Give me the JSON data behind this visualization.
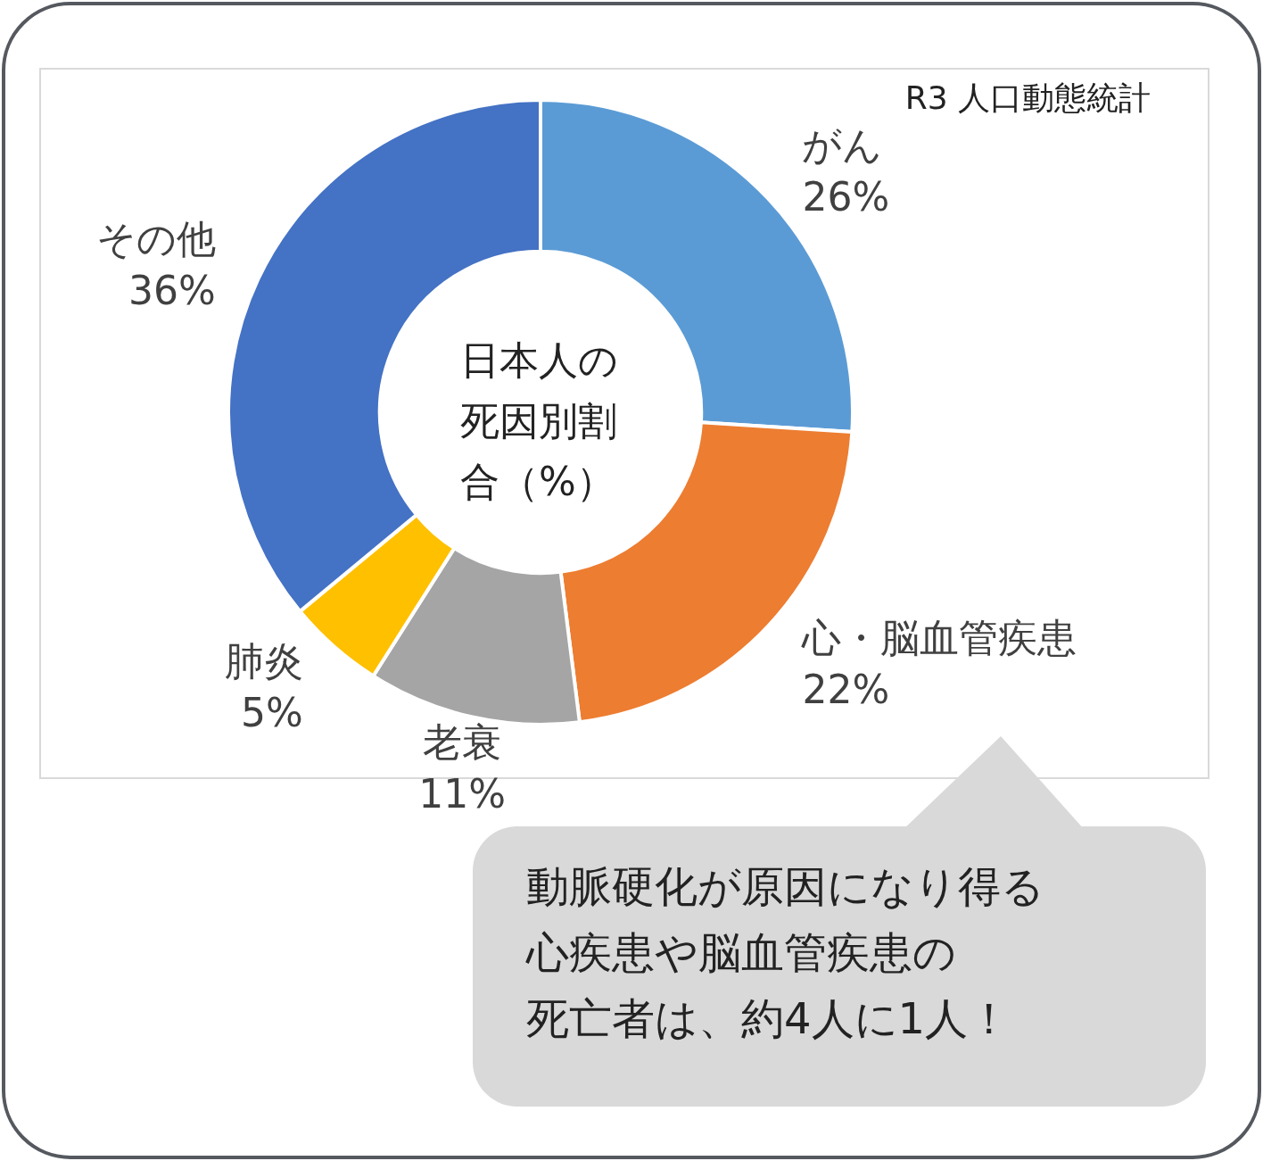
{
  "chart_data": {
    "type": "donut",
    "title": "日本人の死因別割合（%）",
    "categories": [
      "がん",
      "心・脳血管疾患",
      "老衰",
      "肺炎",
      "その他"
    ],
    "values": [
      26,
      22,
      11,
      5,
      36
    ],
    "colors": [
      "#5b9bd5",
      "#ed7d31",
      "#a5a5a5",
      "#ffc000",
      "#4472c4"
    ],
    "value_labels": [
      "26%",
      "22%",
      "11%",
      "5%",
      "36%"
    ],
    "annotations": [
      "R3 人口動態統計",
      "動脈硬化が原因になり得る",
      "心疾患や脳血管疾患の",
      "死亡者は、約4人に1人！"
    ]
  }
}
